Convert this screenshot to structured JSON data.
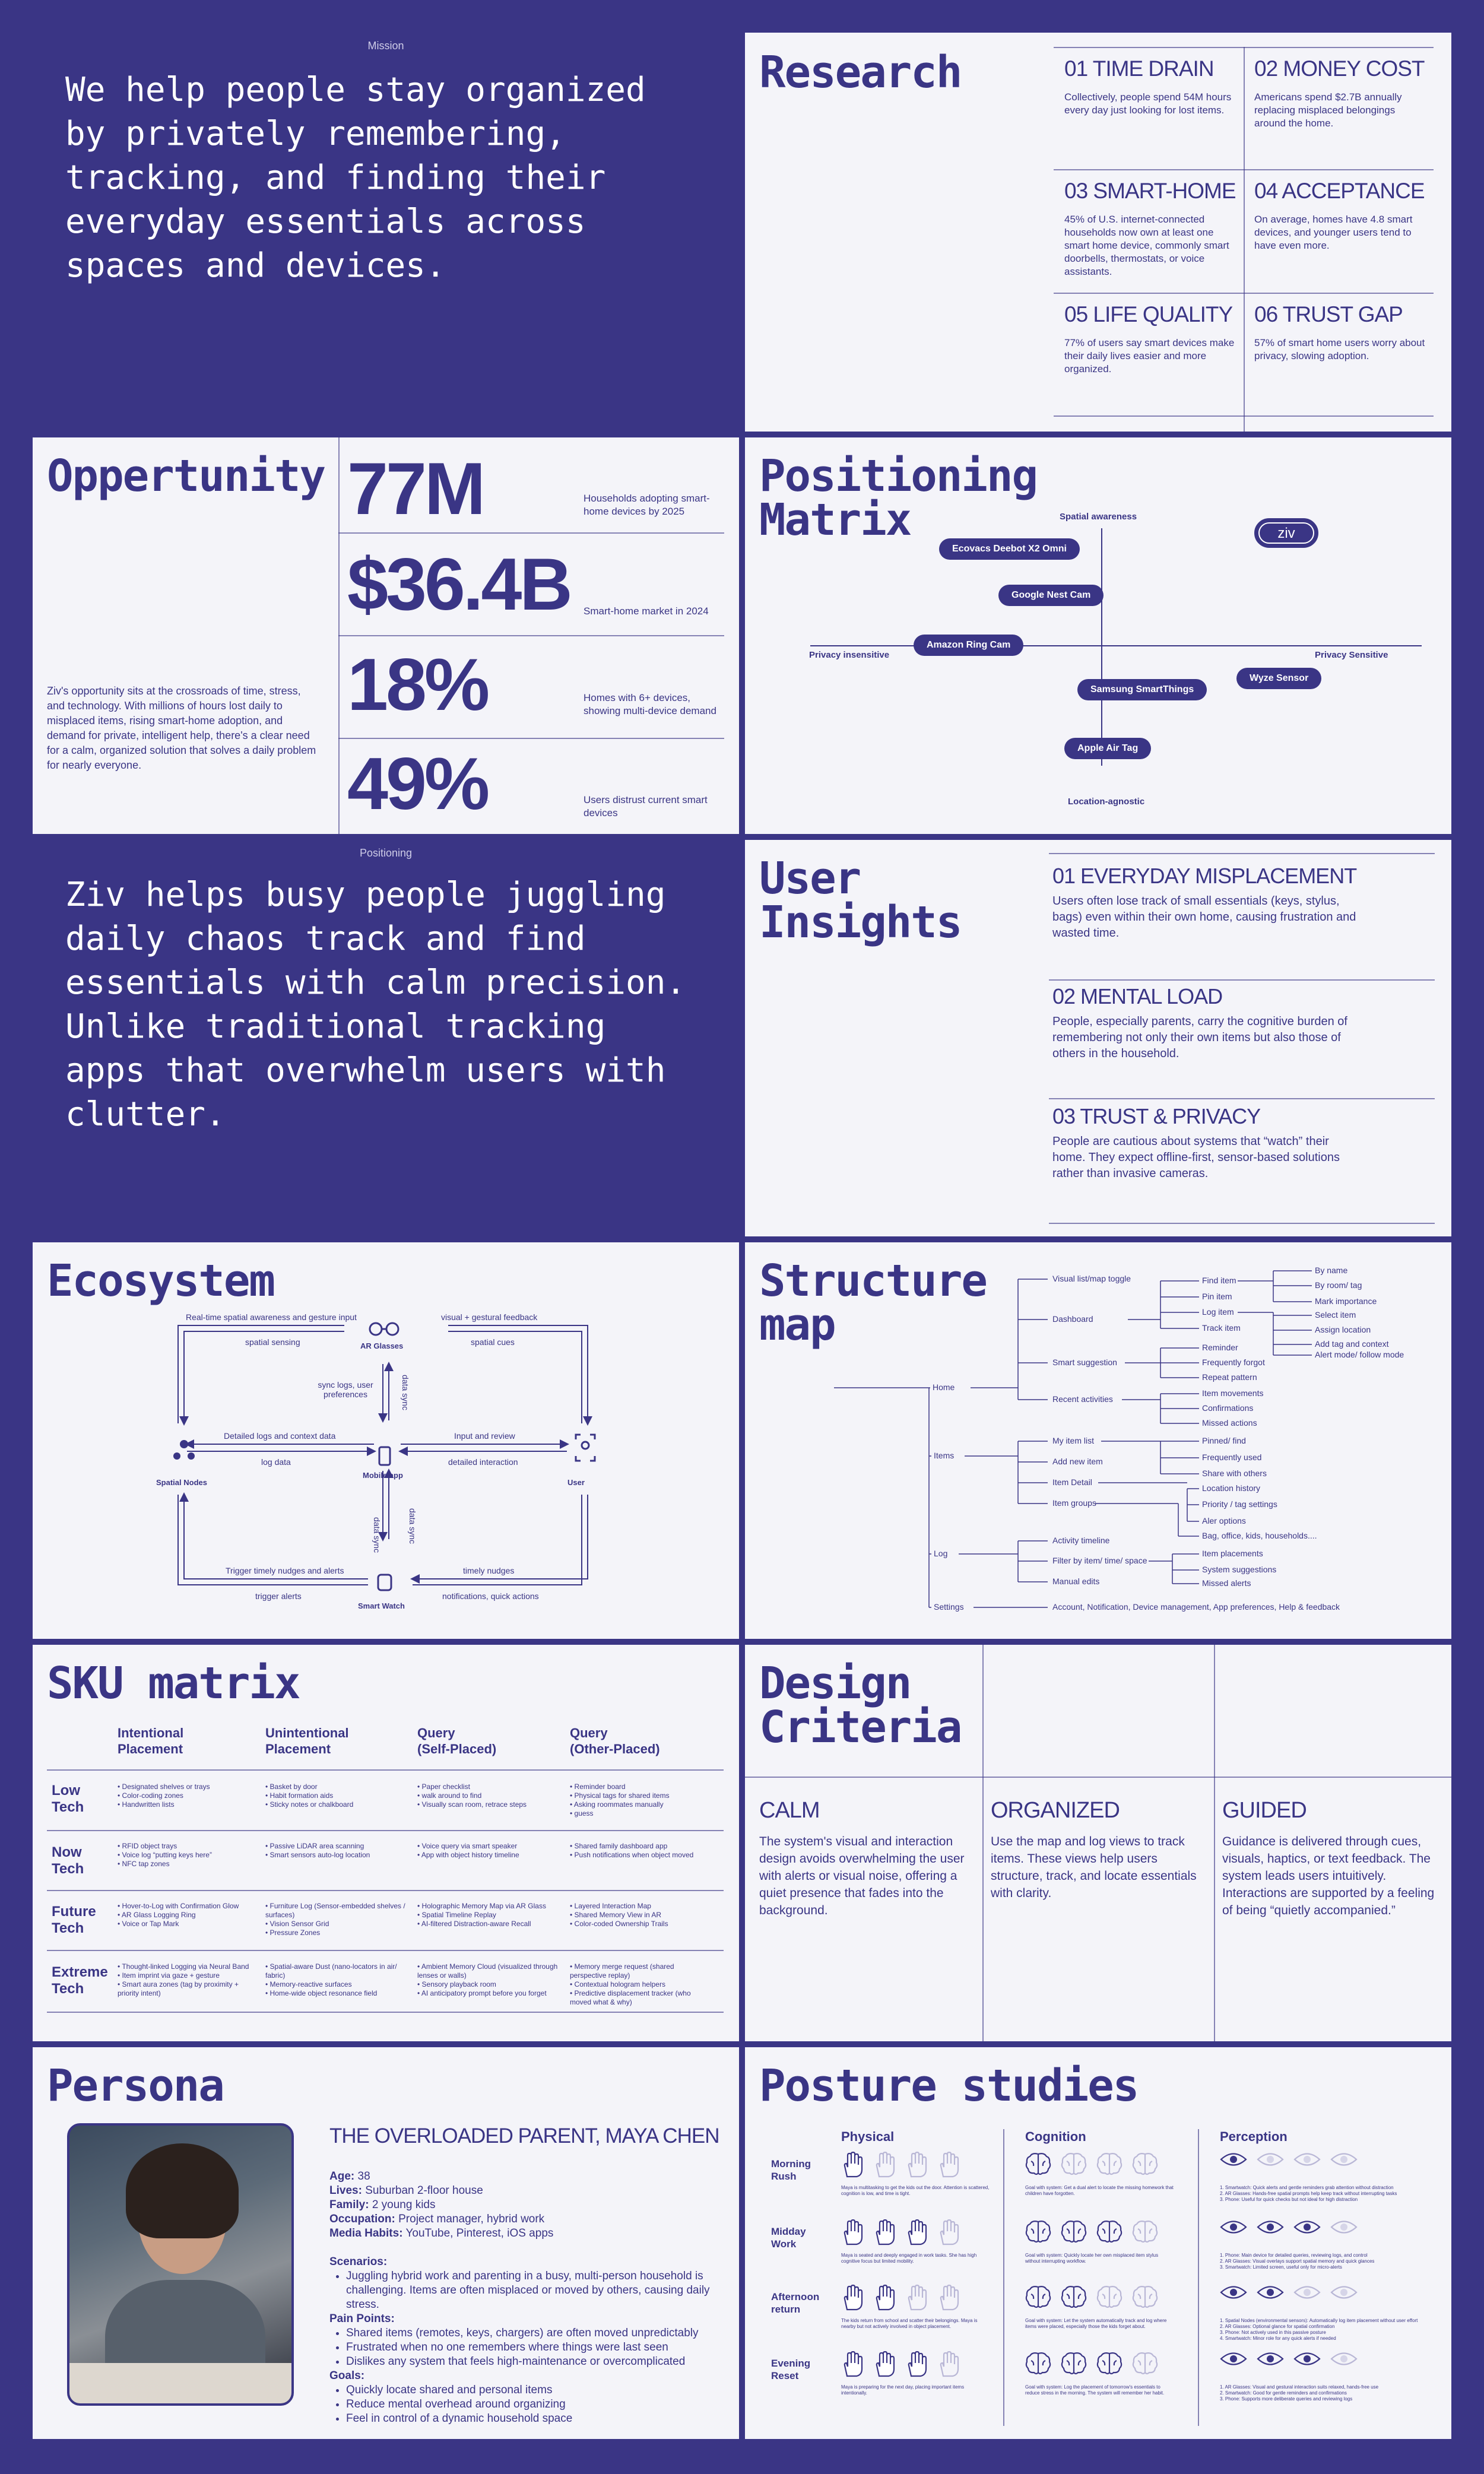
{
  "mission": {
    "eyebrow": "Mission",
    "statement": "We help people stay organized by privately remembering, tracking, and finding their everyday essentials across spaces and devices."
  },
  "research": {
    "title": "Research",
    "cells": [
      {
        "title": "01 TIME DRAIN",
        "text": "Collectively, people spend 54M hours every day just looking for lost items."
      },
      {
        "title": "02 MONEY COST",
        "text": "Americans spend $2.7B annually replacing misplaced belongings around the home."
      },
      {
        "title": "03 SMART-HOME",
        "text": "45% of U.S. internet-connected households now own at least one smart home device, commonly smart doorbells, thermostats, or voice assistants."
      },
      {
        "title": "04 ACCEPTANCE",
        "text": "On average, homes have 4.8 smart devices, and younger users tend to have even more."
      },
      {
        "title": "05 LIFE QUALITY",
        "text": "77% of users say smart devices make their daily lives easier and more organized."
      },
      {
        "title": "06 TRUST GAP",
        "text": "57% of smart home users worry about privacy, slowing adoption."
      }
    ]
  },
  "opportunity": {
    "title": "Oppertunity",
    "body": "Ziv's opportunity sits at the crossroads of time, stress, and technology. With millions of hours lost daily to misplaced items, rising smart-home adoption, and demand for private, intelligent help, there's a clear need for a calm, organized solution that solves a daily problem for nearly everyone.",
    "stats": [
      {
        "value": "77M",
        "label": "Households adopting smart-home devices by 2025"
      },
      {
        "value": "$36.4B",
        "label": "Smart-home market in 2024"
      },
      {
        "value": "18%",
        "label": "Homes with 6+ devices, showing multi-device demand"
      },
      {
        "value": "49%",
        "label": "Users distrust current smart devices"
      }
    ]
  },
  "matrix": {
    "title": "Positioning\nMatrix",
    "axis_top": "Spatial awareness",
    "axis_bottom": "Location-agnostic",
    "axis_left": "Privacy insensitive",
    "axis_right": "Privacy Sensitive",
    "brand": "ziv",
    "products": [
      "Ecovacs Deebot X2 Omni",
      "Google Nest Cam",
      "Amazon Ring Cam",
      "Samsung SmartThings",
      "Wyze Sensor",
      "Apple Air Tag"
    ]
  },
  "positioning": {
    "eyebrow": "Positioning",
    "statement": "Ziv helps busy people juggling daily chaos track and find essentials with calm precision. Unlike traditional tracking apps that overwhelm users with clutter."
  },
  "insights": {
    "title": "User\nInsights",
    "items": [
      {
        "title": "01 EVERYDAY MISPLACEMENT",
        "text": "Users often lose track of small essentials (keys, stylus, bags) even within their own home, causing frustration and wasted time."
      },
      {
        "title": "02 MENTAL LOAD",
        "text": "People, especially parents, carry the cognitive burden of remembering not only their own items but also those of others in the household."
      },
      {
        "title": "03 TRUST & PRIVACY",
        "text": "People are cautious about systems that “watch” their home. They expect offline-first, sensor-based solutions rather than invasive cameras."
      }
    ]
  },
  "ecosystem": {
    "title": "Ecosystem",
    "nodes": {
      "glasses": "AR Glasses",
      "spatial": "Spatial Nodes",
      "mobile": "Mobile app",
      "user": "User",
      "watch": "Smart Watch"
    },
    "labels": {
      "top_left": "Real-time spatial awareness and gesture input",
      "top_left_in": "spatial sensing",
      "top_right": "visual + gestural feedback",
      "top_right_in": "spatial cues",
      "sync_logs": "sync logs, user preferences",
      "data_sync_top": "data sync",
      "mid_left_top": "Detailed logs and context data",
      "mid_left_bottom": "log data",
      "mid_right_top": "Input and review",
      "mid_right_bottom": "detailed interaction",
      "data_sync_a": "data sync",
      "data_sync_b": "data sync",
      "bottom_left": "Trigger timely nudges and alerts",
      "bottom_left_in": "trigger alerts",
      "bottom_right": "timely nudges",
      "bottom_right_in": "notifications, quick actions"
    }
  },
  "structure": {
    "title": "Structure\nmap",
    "root_items": [
      "Home",
      "Items",
      "Log",
      "Settings"
    ],
    "home_children": [
      "Visual list/map toggle",
      "Dashboard",
      "Smart suggestion",
      "Recent activities"
    ],
    "dashboard_children": [
      "Find item",
      "Pin item",
      "Log item",
      "Track item"
    ],
    "find_children": [
      "By name",
      "By room/ tag",
      "Mark importance"
    ],
    "log_children": [
      "Select item",
      "Assign location",
      "Add tag and context",
      "Alert mode/ follow mode"
    ],
    "smart_children": [
      "Reminder",
      "Frequently forgot",
      "Repeat pattern"
    ],
    "recent_children": [
      "Item movements",
      "Confirmations",
      "Missed actions"
    ],
    "items_children": [
      "My item list",
      "Add new item",
      "Item Detail",
      "Item groups"
    ],
    "mylist_children": [
      "Pinned/ find",
      "Frequently used",
      "Share with others"
    ],
    "detail_children": [
      "Location history",
      "Priority / tag settings",
      "Aler options"
    ],
    "groups_children": [
      "Bag, office, kids, households...."
    ],
    "log_root_children": [
      "Activity timeline",
      "Filter by item/ time/ space",
      "Manual edits"
    ],
    "filter_children": [
      "Item placements",
      "System suggestions",
      "Missed alerts"
    ],
    "settings_text": "Account, Notification, Device management, App preferences, Help & feedback"
  },
  "sku": {
    "title": "SKU matrix",
    "columns": [
      "Intentional\nPlacement",
      "Unintentional\nPlacement",
      "Query\n(Self-Placed)",
      "Query\n(Other-Placed)"
    ],
    "rows": [
      {
        "label": "Low\nTech",
        "cells": [
          "• Designated shelves or trays\n• Color-coding zones\n• Handwritten lists",
          "• Basket by door\n• Habit formation aids\n• Sticky notes or chalkboard",
          "• Paper checklist\n• walk around to find\n• Visually scan room, retrace steps",
          "• Reminder board\n• Physical tags for shared items\n• Asking roommates manually\n• guess"
        ]
      },
      {
        "label": "Now\nTech",
        "cells": [
          "• RFID object trays\n• Voice log “putting keys here”\n• NFC tap zones",
          "• Passive LiDAR area scanning\n• Smart sensors auto-log location",
          "• Voice query via smart speaker\n• App with object history timeline",
          "• Shared family dashboard app\n• Push notifications when object moved"
        ]
      },
      {
        "label": "Future\nTech",
        "cells": [
          "• Hover-to-Log with Confirmation Glow\n• AR Glass Logging Ring\n• Voice or Tap Mark",
          "• Furniture Log (Sensor-embedded shelves / surfaces)\n• Vision Sensor Grid\n• Pressure Zones",
          "• Holographic Memory Map via AR Glass\n• Spatial Timeline Replay\n• AI-filtered Distraction-aware Recall",
          "• Layered Interaction Map\n• Shared Memory View in AR\n• Color-coded Ownership Trails"
        ]
      },
      {
        "label": "Extreme\nTech",
        "cells": [
          "• Thought-linked Logging via Neural Band\n• Item imprint via gaze + gesture\n• Smart aura zones (tag by proximity + priority intent)",
          "• Spatial-aware Dust (nano-locators in air/ fabric)\n• Memory-reactive surfaces\n• Home-wide object resonance field",
          "• Ambient Memory Cloud (visualized through lenses or walls)\n• Sensory playback room\n• AI anticipatory prompt before you forget",
          "• Memory merge request (shared perspective replay)\n• Contextual hologram helpers\n• Predictive displacement tracker (who moved what & why)"
        ]
      }
    ]
  },
  "design": {
    "title": "Design\nCriteria",
    "criteria": [
      {
        "title": "CALM",
        "text": "The system's visual and interaction design avoids overwhelming the user with alerts or visual noise, offering a quiet presence that fades into the background."
      },
      {
        "title": "ORGANIZED",
        "text": "Use the map and log views to track items. These views help users structure, track, and locate essentials with clarity."
      },
      {
        "title": "GUIDED",
        "text": "Guidance is delivered through cues, visuals, haptics, or text feedback. The system leads users intuitively. Interactions are supported by a feeling of being “quietly accompanied.”"
      }
    ]
  },
  "persona": {
    "title": "Persona",
    "name": "THE OVERLOADED PARENT, MAYA CHEN",
    "facts": [
      {
        "k": "Age:",
        "v": "38"
      },
      {
        "k": "Lives:",
        "v": "Suburban 2-floor house"
      },
      {
        "k": "Family:",
        "v": "2 young kids"
      },
      {
        "k": "Occupation:",
        "v": "Project manager, hybrid work"
      },
      {
        "k": "Media Habits:",
        "v": "YouTube, Pinterest, iOS apps"
      }
    ],
    "scenarios_label": "Scenarios:",
    "scenarios": [
      "Juggling hybrid work and parenting in a busy, multi-person household is challenging. Items are often misplaced or moved by others, causing daily stress."
    ],
    "pain_label": "Pain Points:",
    "pains": [
      "Shared items (remotes, keys, chargers) are often moved unpredictably",
      "Frustrated when no one remembers where things were last seen",
      "Dislikes any system that feels high-maintenance or overcomplicated"
    ],
    "goals_label": "Goals:",
    "goals": [
      "Quickly locate shared and personal items",
      "Reduce mental overhead around organizing",
      "Feel in control of a dynamic household space"
    ]
  },
  "posture": {
    "title": "Posture studies",
    "columns": [
      "Physical",
      "Cognition",
      "Perception"
    ],
    "rows": [
      {
        "label": "Morning\nRush",
        "fills": [
          1,
          0,
          0,
          0
        ],
        "cells": [
          "Maya is multitasking to get the kids out the door. Attention is scattered, cognition is low, and time is tight.",
          "Goal with system: Get a dual alert to locate the missing homework that children have forgotten.",
          "1. Smartwatch: Quick alerts and gentle reminders grab attention without distraction\n2. AR Glasses: Hands-free spatial prompts help keep track without interrupting tasks\n3. Phone: Useful for quick checks but not ideal for high distraction"
        ]
      },
      {
        "label": "Midday\nWork",
        "fills": [
          1,
          1,
          1,
          0
        ],
        "cells": [
          "Maya is seated and deeply engaged in work tasks. She has high cognitive focus but limited mobility.",
          "Goal with system: Quickly locate her own misplaced item stylus without interrupting workflow.",
          "1. Phone: Main device for detailed queries, reviewing logs, and control\n2. AR Glasses: Visual overlays support spatial memory and quick glances\n3. Smartwatch: Limited screen, useful only for micro-alerts"
        ]
      },
      {
        "label": "Afternoon\nreturn",
        "fills": [
          1,
          1,
          0,
          0
        ],
        "cells": [
          "The kids return from school and scatter their belongings. Maya is nearby but not actively involved in object placement.",
          "Goal with system: Let the system automatically track and log where items were placed, especially those the kids forget about.",
          "1. Spatial Nodes (environmental sensors): Automatically log item placement without user effort\n2. AR Glasses: Optional glance for spatial confirmation\n3. Phone: Not actively used in this passive posture\n4. Smartwatch: Minor role for any quick alerts if needed"
        ]
      },
      {
        "label": "Evening\nReset",
        "fills": [
          1,
          1,
          1,
          0
        ],
        "cells": [
          "Maya is preparing for the next day, placing important items intentionally.",
          "Goal with system: Log the placement of tomorrow's essentials to reduce stress in the morning. The system will remember her habit.",
          "1. AR Glasses: Visual and gestural interaction suits relaxed, hands-free use\n2. Smartwatch: Good for gentle reminders and confirmations\n3. Phone: Supports more deliberate queries and reviewing logs"
        ]
      }
    ]
  }
}
